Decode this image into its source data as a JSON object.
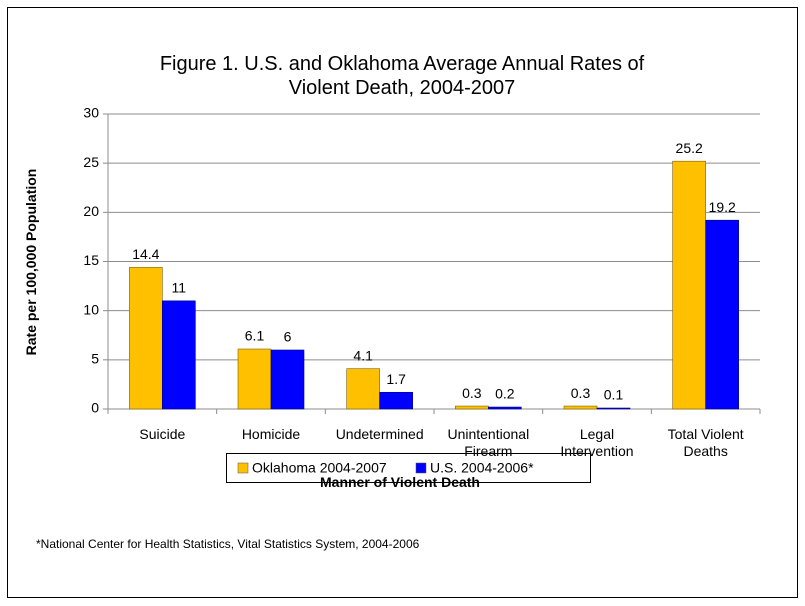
{
  "chart_data": {
    "type": "bar",
    "title": "Figure 1. U.S. and Oklahoma Average Annual Rates of Violent Death, 2004-2007",
    "x_label": "Manner of Violent Death",
    "y_label": "Rate per 100,000 Population",
    "categories": [
      "Suicide",
      "Homicide",
      "Undetermined",
      "Unintentional Firearm",
      "Legal Intervention",
      "Total Violent Deaths"
    ],
    "series": [
      {
        "name": "Oklahoma 2004-2007",
        "color": "#ffc000",
        "values": [
          14.4,
          6.1,
          4.1,
          0.3,
          0.3,
          25.2
        ]
      },
      {
        "name": "U.S. 2004-2006*",
        "color": "#0000ff",
        "values": [
          11,
          6,
          1.7,
          0.2,
          0.1,
          19.2
        ]
      }
    ],
    "ylim": [
      0,
      30
    ],
    "yticks": [
      0,
      5,
      10,
      15,
      20,
      25,
      30
    ],
    "grid": true,
    "legend": "bottom",
    "footnote": "*National Center for Health Statistics, Vital Statistics System, 2004-2006"
  }
}
